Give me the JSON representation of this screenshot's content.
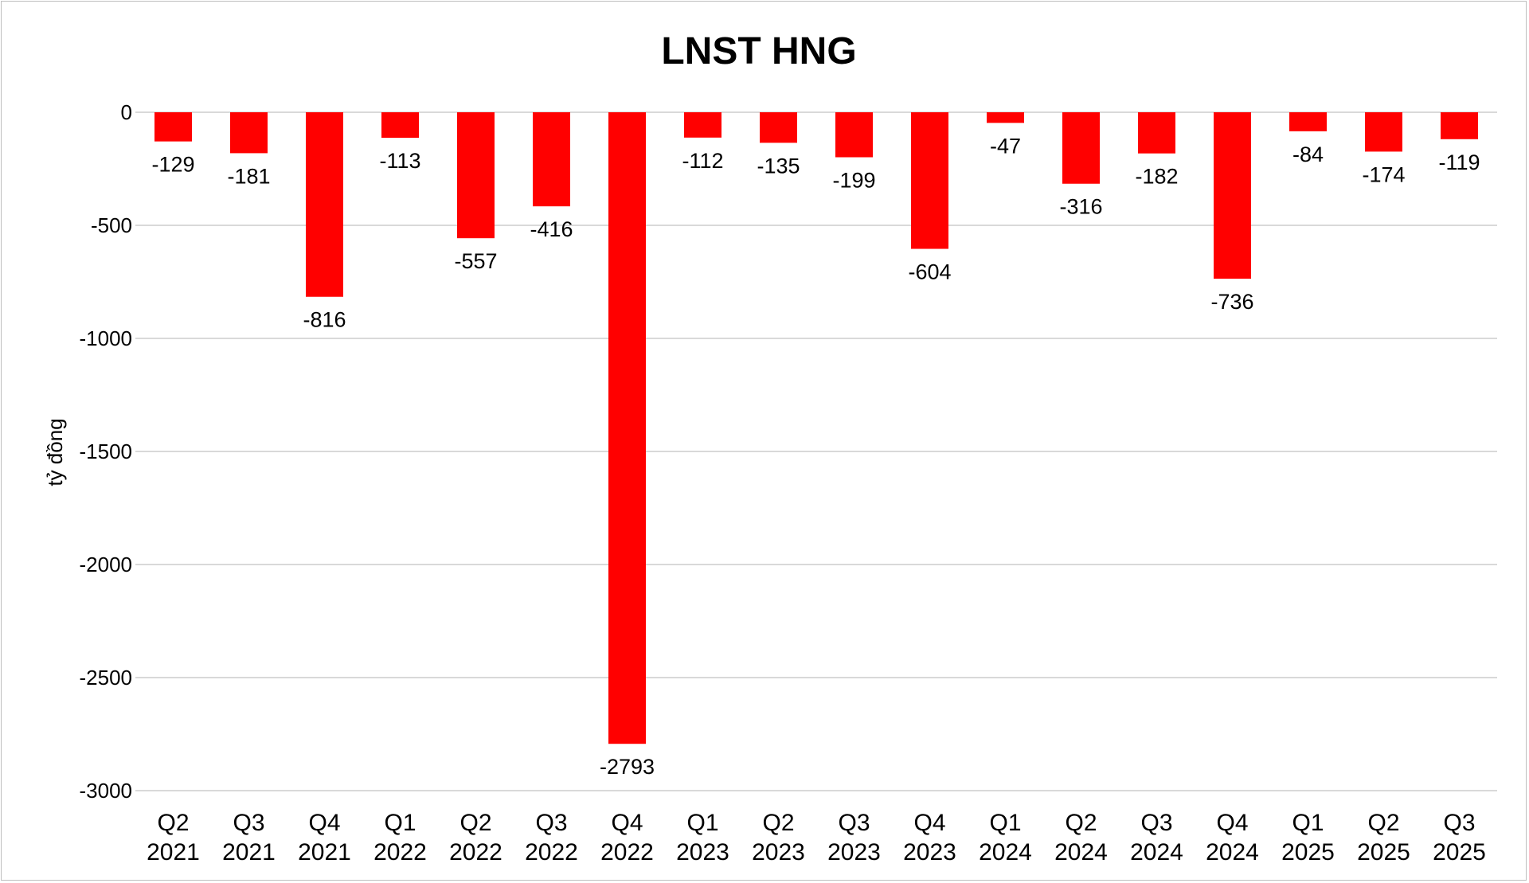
{
  "chart_data": {
    "type": "bar",
    "title": "LNST HNG",
    "xlabel": "",
    "ylabel": "tỷ đồng",
    "ylim": [
      -3000,
      0
    ],
    "yticks": [
      0,
      -500,
      -1000,
      -1500,
      -2000,
      -2500,
      -3000
    ],
    "grid": true,
    "legend": "none",
    "categories": [
      [
        "Q2",
        "2021"
      ],
      [
        "Q3",
        "2021"
      ],
      [
        "Q4",
        "2021"
      ],
      [
        "Q1",
        "2022"
      ],
      [
        "Q2",
        "2022"
      ],
      [
        "Q3",
        "2022"
      ],
      [
        "Q4",
        "2022"
      ],
      [
        "Q1",
        "2023"
      ],
      [
        "Q2",
        "2023"
      ],
      [
        "Q3",
        "2023"
      ],
      [
        "Q4",
        "2023"
      ],
      [
        "Q1",
        "2024"
      ],
      [
        "Q2",
        "2024"
      ],
      [
        "Q3",
        "2024"
      ],
      [
        "Q4",
        "2024"
      ],
      [
        "Q1",
        "2025"
      ],
      [
        "Q2",
        "2025"
      ],
      [
        "Q3",
        "2025"
      ]
    ],
    "series": [
      {
        "values": [
          -129,
          -181,
          -816,
          -113,
          -557,
          -416,
          -2793,
          -112,
          -135,
          -199,
          -604,
          -47,
          -316,
          -182,
          -736,
          -84,
          -174,
          -119
        ],
        "color": "#ff0000"
      }
    ]
  }
}
